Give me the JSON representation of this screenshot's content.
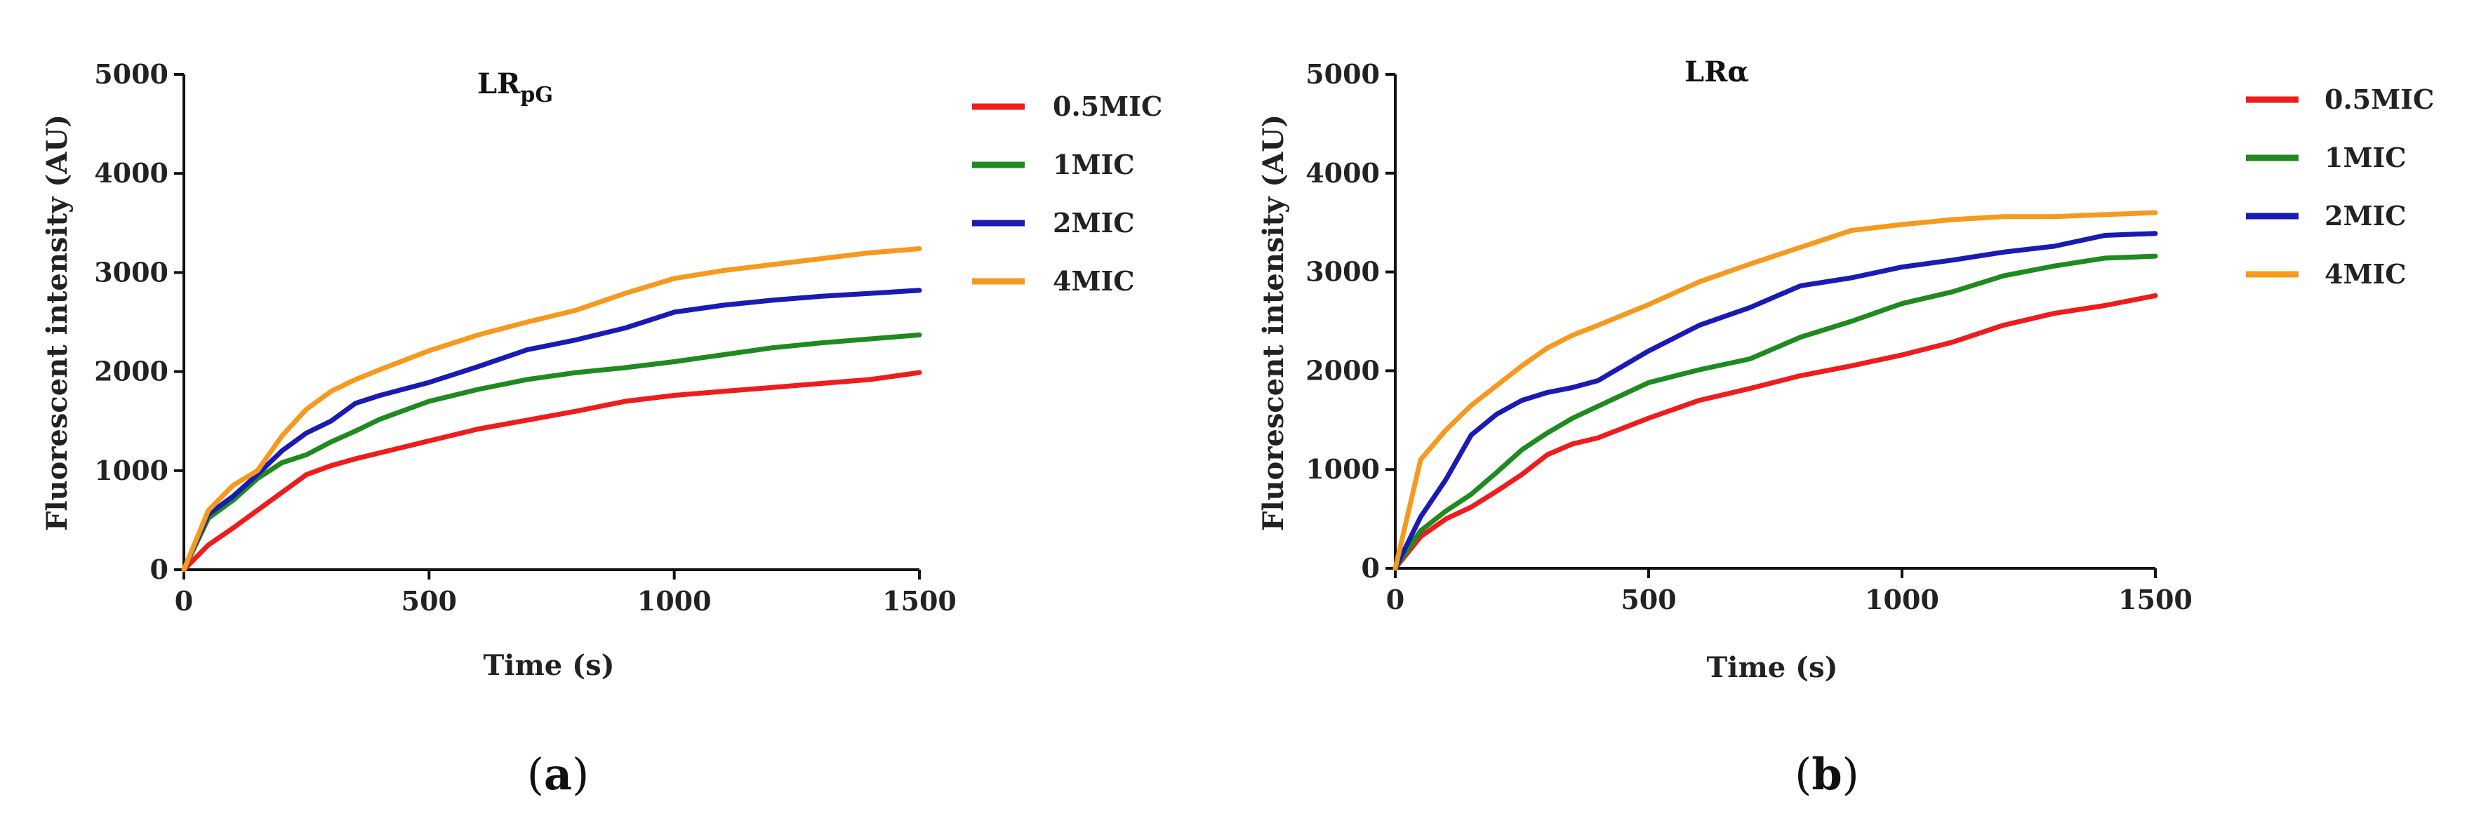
{
  "figure": {
    "panels": [
      {
        "caption": {
          "open": "(",
          "letter": "a",
          "close": ")"
        },
        "title": {
          "main": "LR",
          "sub": "pG"
        }
      },
      {
        "caption": {
          "open": "(",
          "letter": "b",
          "close": ")"
        },
        "title": {
          "main": "LR",
          "sub": "α"
        }
      }
    ]
  },
  "chart_data": [
    {
      "type": "line",
      "title": "LRpG",
      "xlabel": "Time (s)",
      "ylabel": "Fluorescent intensity (AU)",
      "xlim": [
        0,
        1500
      ],
      "ylim": [
        0,
        5000
      ],
      "xticks": [
        "0",
        "500",
        "1000",
        "1500"
      ],
      "yticks": [
        "0",
        "1000",
        "2000",
        "3000",
        "4000",
        "5000"
      ],
      "grid": false,
      "legend_position": "right",
      "x": [
        0,
        50,
        100,
        150,
        200,
        250,
        300,
        350,
        400,
        500,
        600,
        700,
        800,
        900,
        1000,
        1100,
        1200,
        1300,
        1400,
        1500
      ],
      "series": [
        {
          "name": "0.5MIC",
          "color": "#ee1c1c",
          "values": [
            0,
            250,
            420,
            600,
            780,
            960,
            1050,
            1120,
            1180,
            1300,
            1420,
            1510,
            1600,
            1700,
            1760,
            1800,
            1840,
            1880,
            1920,
            1990
          ]
        },
        {
          "name": "1MIC",
          "color": "#1f8a1f",
          "values": [
            0,
            520,
            700,
            920,
            1080,
            1160,
            1290,
            1400,
            1520,
            1700,
            1820,
            1920,
            1990,
            2040,
            2100,
            2170,
            2240,
            2290,
            2330,
            2370
          ]
        },
        {
          "name": "2MIC",
          "color": "#1a1ab4",
          "values": [
            0,
            560,
            740,
            960,
            1200,
            1380,
            1500,
            1680,
            1760,
            1890,
            2050,
            2220,
            2320,
            2440,
            2600,
            2670,
            2720,
            2760,
            2790,
            2820
          ]
        },
        {
          "name": "4MIC",
          "color": "#f59a1e",
          "values": [
            0,
            600,
            850,
            1000,
            1350,
            1620,
            1800,
            1920,
            2020,
            2210,
            2370,
            2500,
            2620,
            2790,
            2940,
            3020,
            3080,
            3140,
            3200,
            3240
          ]
        }
      ]
    },
    {
      "type": "line",
      "title": "LRα",
      "xlabel": "Time (s)",
      "ylabel": "Fluorescent intensity (AU)",
      "xlim": [
        0,
        1500
      ],
      "ylim": [
        0,
        5000
      ],
      "xticks": [
        "0",
        "500",
        "1000",
        "1500"
      ],
      "yticks": [
        "0",
        "1000",
        "2000",
        "3000",
        "4000",
        "5000"
      ],
      "grid": false,
      "legend_position": "right",
      "x": [
        0,
        50,
        100,
        150,
        200,
        250,
        300,
        350,
        400,
        500,
        600,
        700,
        800,
        900,
        1000,
        1100,
        1200,
        1300,
        1400,
        1500
      ],
      "series": [
        {
          "name": "0.5MIC",
          "color": "#ee1c1c",
          "values": [
            0,
            320,
            500,
            620,
            780,
            950,
            1150,
            1260,
            1320,
            1520,
            1700,
            1820,
            1950,
            2050,
            2160,
            2290,
            2460,
            2580,
            2660,
            2760
          ]
        },
        {
          "name": "1MIC",
          "color": "#1f8a1f",
          "values": [
            0,
            380,
            580,
            750,
            970,
            1200,
            1370,
            1520,
            1640,
            1880,
            2010,
            2120,
            2340,
            2500,
            2680,
            2800,
            2960,
            3060,
            3140,
            3160
          ]
        },
        {
          "name": "2MIC",
          "color": "#1a1ab4",
          "values": [
            0,
            520,
            900,
            1350,
            1560,
            1700,
            1780,
            1830,
            1900,
            2200,
            2460,
            2640,
            2860,
            2940,
            3050,
            3120,
            3200,
            3260,
            3370,
            3390
          ]
        },
        {
          "name": "4MIC",
          "color": "#f59a1e",
          "values": [
            0,
            1100,
            1400,
            1650,
            1850,
            2050,
            2230,
            2360,
            2460,
            2670,
            2900,
            3080,
            3250,
            3420,
            3480,
            3530,
            3560,
            3560,
            3580,
            3600
          ]
        }
      ]
    }
  ]
}
